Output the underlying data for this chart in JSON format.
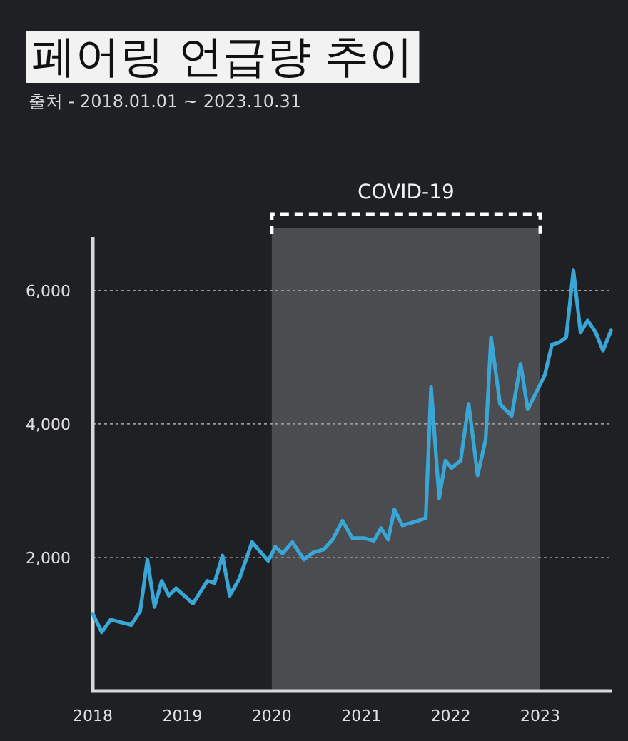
{
  "chart_data": {
    "type": "line",
    "title": "페어링 언급량 추이",
    "subtitle": "출처 - 2018.01.01 ~ 2023.10.31",
    "series": [
      {
        "color": "#3aa6d6",
        "x": [
          2018.0,
          2018.1,
          2018.2,
          2018.43,
          2018.53,
          2018.61,
          2018.69,
          2018.77,
          2018.85,
          2018.93,
          2019.12,
          2019.28,
          2019.36,
          2019.45,
          2019.53,
          2019.64,
          2019.78,
          2019.96,
          2020.04,
          2020.12,
          2020.23,
          2020.36,
          2020.47,
          2020.58,
          2020.68,
          2020.79,
          2020.9,
          2021.03,
          2021.14,
          2021.22,
          2021.3,
          2021.37,
          2021.46,
          2021.59,
          2021.72,
          2021.78,
          2021.87,
          2021.94,
          2022.01,
          2022.11,
          2022.2,
          2022.3,
          2022.39,
          2022.45,
          2022.55,
          2022.68,
          2022.78,
          2022.86,
          2023.05,
          2023.13,
          2023.21,
          2023.29,
          2023.37,
          2023.45,
          2023.53,
          2023.62,
          2023.7,
          2023.79
        ],
        "values": [
          1160,
          880,
          1070,
          990,
          1200,
          1970,
          1260,
          1650,
          1430,
          1540,
          1310,
          1650,
          1620,
          2030,
          1430,
          1690,
          2230,
          1950,
          2160,
          2060,
          2230,
          1970,
          2080,
          2120,
          2270,
          2550,
          2290,
          2290,
          2250,
          2440,
          2270,
          2720,
          2480,
          2530,
          2590,
          4550,
          2890,
          3450,
          3340,
          3450,
          4300,
          3230,
          3770,
          5300,
          4300,
          4120,
          4900,
          4220,
          4730,
          5190,
          5220,
          5300,
          6300,
          5370,
          5550,
          5370,
          5100,
          5400
        ]
      }
    ],
    "xlim": [
      2018,
      2023.8
    ],
    "xticks": [
      2018,
      2019,
      2020,
      2021,
      2022,
      2023
    ],
    "ylim": [
      0,
      6800
    ],
    "yticks": [
      {
        "value": 2000,
        "label": "2,000"
      },
      {
        "value": 4000,
        "label": "4,000"
      },
      {
        "value": 6000,
        "label": "6,000"
      }
    ],
    "grid": "y",
    "line_style": "solid",
    "marker": "none",
    "bands": [
      {
        "axis": "x",
        "from": 2020,
        "to": 2023,
        "label": "COVID-19",
        "color": "#4a4c4f"
      }
    ]
  }
}
